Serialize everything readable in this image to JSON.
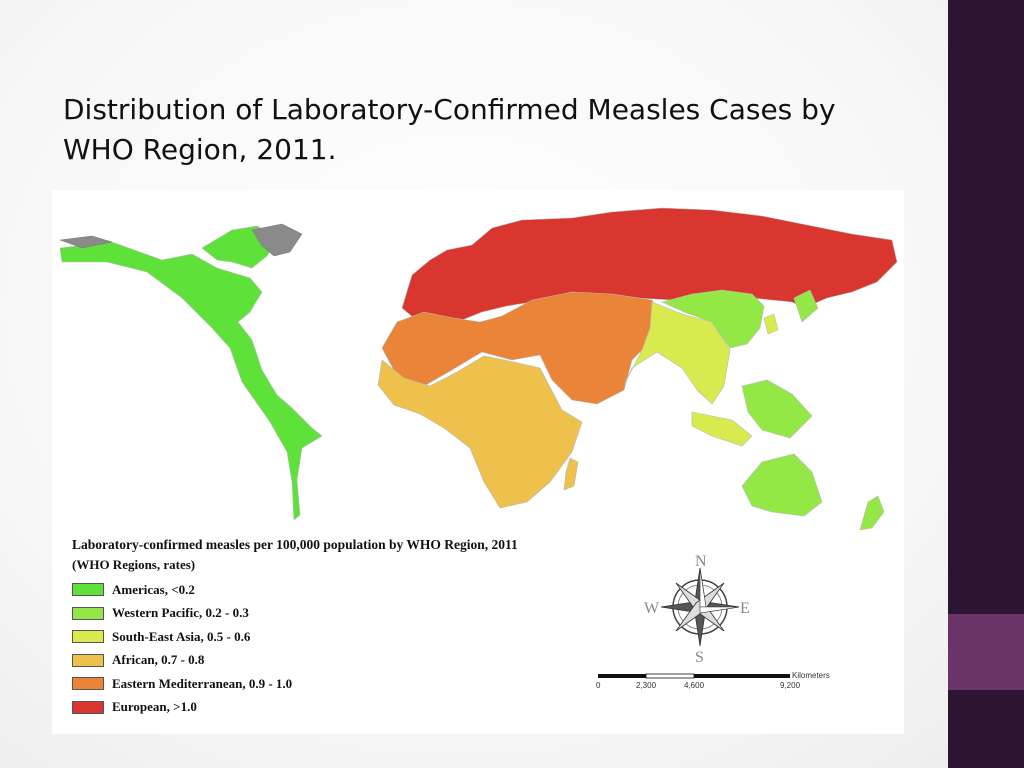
{
  "slide": {
    "title": "Distribution of Laboratory-Confirmed Measles Cases by WHO Region, 2011.",
    "sidebar_color": "#2c1530",
    "accent_color": "#6a3468"
  },
  "map": {
    "land_color_unclassified": "#8a8a8a",
    "regions": [
      {
        "id": "americas",
        "label": "Americas, <0.2",
        "color": "#5ee23a"
      },
      {
        "id": "western-pacific",
        "label": "Western Pacific, 0.2 - 0.3",
        "color": "#93e845"
      },
      {
        "id": "south-east-asia",
        "label": "South-East Asia, 0.5 - 0.6",
        "color": "#d8ea4d"
      },
      {
        "id": "african",
        "label": "African, 0.7 - 0.8",
        "color": "#eec04c"
      },
      {
        "id": "eastern-mediterranean",
        "label": "Eastern Mediterranean, 0.9 - 1.0",
        "color": "#ea8438"
      },
      {
        "id": "european",
        "label": "European, >1.0",
        "color": "#d9362f"
      }
    ]
  },
  "legend": {
    "title": "Laboratory-confirmed measles per 100,000 population by WHO Region, 2011",
    "subtitle": "(WHO Regions, rates)"
  },
  "compass": {
    "north": "N",
    "south": "S",
    "east": "E",
    "west": "W"
  },
  "scale": {
    "unit": "Kilometers",
    "ticks": [
      "0",
      "2,300",
      "4,600",
      "9,200"
    ]
  }
}
